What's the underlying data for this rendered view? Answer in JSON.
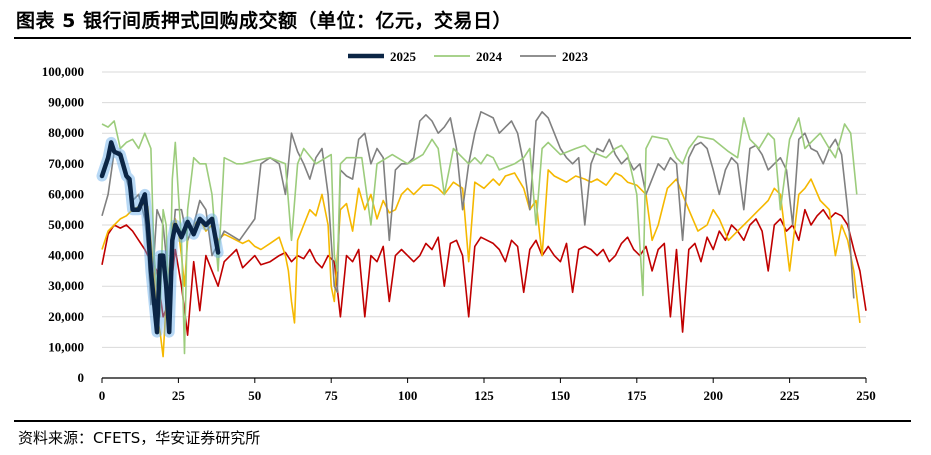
{
  "title": "图表 5  银行间质押式回购成交额（单位：亿元，交易日）",
  "source": "资料来源：CFETS，华安证券研究所",
  "colors": {
    "s2025": "#0b2545",
    "s2025_glow": "#5fa8e8",
    "s2024": "#9ccc7c",
    "s2023": "#808080",
    "orange": "#f5b800",
    "red": "#c00000",
    "grid": "#d9d9d9"
  },
  "chart_data": {
    "type": "line",
    "title": "",
    "xlabel": "",
    "ylabel": "",
    "xlim": [
      0,
      250
    ],
    "ylim": [
      0,
      100000
    ],
    "x_ticks": [
      "0",
      "25",
      "50",
      "75",
      "100",
      "125",
      "150",
      "175",
      "200",
      "225",
      "250"
    ],
    "y_ticks": [
      "0",
      "10,000",
      "20,000",
      "30,000",
      "40,000",
      "50,000",
      "60,000",
      "70,000",
      "80,000",
      "90,000",
      "100,000"
    ],
    "grid": "horizontal",
    "legend": "top-center",
    "series": [
      {
        "name": "2025",
        "color_key": "s2025",
        "x": [
          0,
          2,
          3,
          4,
          6,
          8,
          9,
          10,
          12,
          14,
          15,
          16,
          18,
          19,
          20,
          21,
          22,
          23,
          24,
          25,
          26,
          28,
          30,
          32,
          34,
          36,
          38
        ],
        "y": [
          66000,
          72000,
          77000,
          74000,
          73000,
          66000,
          65000,
          55000,
          55000,
          60000,
          50000,
          35000,
          15000,
          40000,
          40000,
          30000,
          15000,
          45000,
          50000,
          48000,
          46000,
          51000,
          47000,
          52000,
          50000,
          52000,
          41000
        ]
      },
      {
        "name": "2024",
        "color_key": "s2024",
        "x": [
          0,
          2,
          4,
          6,
          8,
          10,
          12,
          14,
          16,
          17,
          18,
          19,
          20,
          21,
          22,
          23,
          24,
          25,
          26,
          27,
          28,
          30,
          32,
          34,
          36,
          38,
          40,
          42,
          44,
          46,
          50,
          55,
          60,
          62,
          64,
          66,
          70,
          75,
          76,
          77,
          78,
          80,
          85,
          88,
          90,
          95,
          100,
          105,
          108,
          110,
          112,
          115,
          118,
          120,
          122,
          124,
          126,
          128,
          130,
          135,
          138,
          140,
          142,
          144,
          146,
          150,
          155,
          158,
          160,
          165,
          168,
          170,
          172,
          175,
          177,
          178,
          180,
          185,
          188,
          190,
          192,
          195,
          200,
          205,
          208,
          210,
          212,
          215,
          218,
          220,
          222,
          225,
          228,
          230,
          233,
          235,
          238,
          240,
          243,
          245,
          247
        ],
        "y": [
          83000,
          82000,
          84000,
          75000,
          77000,
          78000,
          75000,
          80000,
          75000,
          40000,
          30000,
          20000,
          55000,
          50000,
          15000,
          65000,
          77000,
          60000,
          45000,
          8000,
          55000,
          72000,
          70000,
          70000,
          60000,
          35000,
          72000,
          71000,
          70000,
          70000,
          71000,
          72000,
          70000,
          45000,
          70000,
          75000,
          70000,
          73000,
          40000,
          35000,
          70000,
          72000,
          72000,
          50000,
          70000,
          73000,
          70000,
          73000,
          78000,
          75000,
          60000,
          75000,
          72000,
          70000,
          72000,
          70000,
          73000,
          72000,
          68000,
          70000,
          72000,
          75000,
          50000,
          75000,
          77000,
          73000,
          75000,
          76000,
          74000,
          72000,
          75000,
          76000,
          73000,
          60000,
          27000,
          75000,
          79000,
          78000,
          72000,
          70000,
          75000,
          79000,
          78000,
          74000,
          72000,
          85000,
          78000,
          75000,
          80000,
          78000,
          55000,
          78000,
          85000,
          75000,
          78000,
          80000,
          75000,
          72000,
          83000,
          80000,
          60000
        ]
      },
      {
        "name": "2023",
        "color_key": "s2023",
        "x": [
          0,
          2,
          4,
          6,
          8,
          10,
          12,
          14,
          15,
          16,
          18,
          20,
          22,
          24,
          26,
          28,
          30,
          32,
          34,
          36,
          40,
          45,
          50,
          52,
          55,
          58,
          60,
          62,
          64,
          66,
          68,
          70,
          72,
          74,
          76,
          77,
          78,
          80,
          82,
          84,
          86,
          88,
          90,
          92,
          94,
          96,
          98,
          100,
          102,
          104,
          106,
          108,
          110,
          112,
          114,
          116,
          118,
          120,
          122,
          124,
          126,
          128,
          130,
          132,
          134,
          136,
          138,
          140,
          142,
          144,
          146,
          148,
          150,
          152,
          154,
          156,
          158,
          160,
          162,
          164,
          166,
          168,
          170,
          172,
          174,
          176,
          178,
          180,
          182,
          184,
          186,
          188,
          190,
          192,
          194,
          196,
          198,
          200,
          202,
          204,
          206,
          208,
          210,
          212,
          214,
          216,
          218,
          220,
          222,
          224,
          226,
          228,
          230,
          232,
          234,
          236,
          238,
          240,
          242,
          244,
          246
        ],
        "y": [
          53000,
          60000,
          74000,
          74000,
          65000,
          58000,
          60000,
          52000,
          42000,
          24000,
          55000,
          50000,
          30000,
          55000,
          55000,
          45000,
          50000,
          58000,
          55000,
          40000,
          48000,
          45000,
          52000,
          70000,
          72000,
          70000,
          60000,
          80000,
          74000,
          70000,
          65000,
          72000,
          75000,
          60000,
          30000,
          28000,
          68000,
          66000,
          65000,
          78000,
          80000,
          70000,
          75000,
          72000,
          45000,
          68000,
          70000,
          70000,
          72000,
          84000,
          86000,
          84000,
          80000,
          82000,
          85000,
          75000,
          55000,
          70000,
          80000,
          87000,
          86000,
          85000,
          80000,
          82000,
          84000,
          80000,
          70000,
          55000,
          84000,
          87000,
          85000,
          80000,
          75000,
          72000,
          70000,
          72000,
          50000,
          70000,
          75000,
          74000,
          78000,
          73000,
          70000,
          72000,
          68000,
          70000,
          60000,
          65000,
          70000,
          68000,
          72000,
          70000,
          45000,
          72000,
          76000,
          77000,
          75000,
          68000,
          60000,
          68000,
          72000,
          70000,
          55000,
          75000,
          76000,
          73000,
          68000,
          70000,
          72000,
          68000,
          50000,
          78000,
          80000,
          75000,
          74000,
          70000,
          75000,
          78000,
          73000,
          55000,
          26000
        ]
      },
      {
        "name": "",
        "color_key": "orange",
        "x": [
          0,
          2,
          4,
          6,
          8,
          10,
          12,
          14,
          15,
          16,
          17,
          18,
          19,
          20,
          21,
          22,
          23,
          24,
          25,
          26,
          27,
          28,
          30,
          32,
          34,
          36,
          38,
          40,
          42,
          44,
          46,
          48,
          50,
          52,
          55,
          58,
          60,
          61,
          62,
          63,
          64,
          66,
          68,
          70,
          72,
          74,
          75,
          76,
          78,
          80,
          82,
          84,
          86,
          88,
          90,
          92,
          94,
          96,
          98,
          100,
          102,
          105,
          108,
          110,
          112,
          115,
          118,
          120,
          122,
          125,
          128,
          130,
          132,
          135,
          138,
          140,
          142,
          144,
          146,
          148,
          150,
          152,
          155,
          158,
          160,
          162,
          165,
          168,
          170,
          172,
          175,
          178,
          180,
          182,
          185,
          188,
          190,
          192,
          195,
          198,
          200,
          202,
          205,
          208,
          210,
          212,
          215,
          218,
          220,
          222,
          225,
          228,
          230,
          232,
          235,
          238,
          240,
          242,
          244,
          246,
          248
        ],
        "y": [
          42000,
          48000,
          50000,
          52000,
          53000,
          55000,
          56000,
          57000,
          56000,
          45000,
          35000,
          20000,
          15000,
          7000,
          25000,
          35000,
          50000,
          52000,
          48000,
          40000,
          30000,
          45000,
          50000,
          52000,
          48000,
          50000,
          45000,
          47000,
          46000,
          45000,
          44000,
          45000,
          43000,
          42000,
          44000,
          46000,
          40000,
          35000,
          25000,
          18000,
          45000,
          50000,
          55000,
          53000,
          60000,
          50000,
          30000,
          25000,
          55000,
          57000,
          48000,
          62000,
          55000,
          60000,
          52000,
          58000,
          54000,
          55000,
          60000,
          62000,
          60000,
          63000,
          63000,
          62000,
          60000,
          64000,
          62000,
          38000,
          64000,
          62000,
          65000,
          63000,
          66000,
          67000,
          62000,
          55000,
          58000,
          40000,
          68000,
          66000,
          65000,
          64000,
          66000,
          65000,
          64000,
          65000,
          63000,
          67000,
          66000,
          64000,
          63000,
          60000,
          45000,
          50000,
          62000,
          65000,
          60000,
          55000,
          48000,
          50000,
          55000,
          52000,
          45000,
          48000,
          50000,
          52000,
          55000,
          58000,
          62000,
          60000,
          35000,
          60000,
          62000,
          65000,
          58000,
          55000,
          40000,
          50000,
          45000,
          35000,
          18000
        ]
      },
      {
        "name": "",
        "color_key": "red",
        "x": [
          0,
          2,
          4,
          6,
          8,
          10,
          12,
          14,
          16,
          18,
          20,
          22,
          24,
          26,
          28,
          30,
          32,
          34,
          36,
          38,
          40,
          42,
          44,
          46,
          48,
          50,
          52,
          55,
          58,
          60,
          62,
          64,
          66,
          68,
          70,
          72,
          74,
          76,
          78,
          80,
          82,
          84,
          86,
          88,
          90,
          92,
          94,
          96,
          98,
          100,
          102,
          104,
          106,
          108,
          110,
          112,
          114,
          116,
          118,
          120,
          122,
          124,
          126,
          128,
          130,
          132,
          134,
          136,
          138,
          140,
          142,
          144,
          146,
          148,
          150,
          152,
          154,
          156,
          158,
          160,
          162,
          164,
          166,
          168,
          170,
          172,
          174,
          176,
          178,
          180,
          182,
          184,
          186,
          188,
          190,
          192,
          194,
          196,
          198,
          200,
          202,
          204,
          206,
          208,
          210,
          212,
          214,
          216,
          218,
          220,
          222,
          224,
          226,
          228,
          230,
          232,
          234,
          236,
          238,
          240,
          242,
          244,
          246,
          248,
          250
        ],
        "y": [
          37000,
          47000,
          50000,
          49000,
          50000,
          48000,
          45000,
          42000,
          38000,
          35000,
          20000,
          25000,
          42000,
          30000,
          14000,
          38000,
          22000,
          40000,
          35000,
          30000,
          38000,
          40000,
          42000,
          36000,
          38000,
          40000,
          37000,
          38000,
          40000,
          41000,
          38000,
          40000,
          39000,
          42000,
          38000,
          36000,
          40000,
          38000,
          20000,
          40000,
          38000,
          42000,
          20000,
          40000,
          38000,
          43000,
          25000,
          40000,
          42000,
          40000,
          38000,
          40000,
          44000,
          42000,
          46000,
          30000,
          44000,
          45000,
          40000,
          20000,
          43000,
          46000,
          45000,
          44000,
          42000,
          38000,
          45000,
          43000,
          28000,
          42000,
          45000,
          40000,
          43000,
          40000,
          38000,
          44000,
          28000,
          42000,
          43000,
          42000,
          40000,
          42000,
          38000,
          40000,
          44000,
          46000,
          42000,
          40000,
          43000,
          35000,
          42000,
          44000,
          20000,
          42000,
          15000,
          42000,
          44000,
          38000,
          46000,
          42000,
          48000,
          45000,
          50000,
          48000,
          45000,
          50000,
          52000,
          48000,
          35000,
          50000,
          52000,
          48000,
          50000,
          45000,
          55000,
          50000,
          53000,
          55000,
          52000,
          54000,
          53000,
          50000,
          42000,
          35000,
          22000
        ]
      }
    ]
  }
}
